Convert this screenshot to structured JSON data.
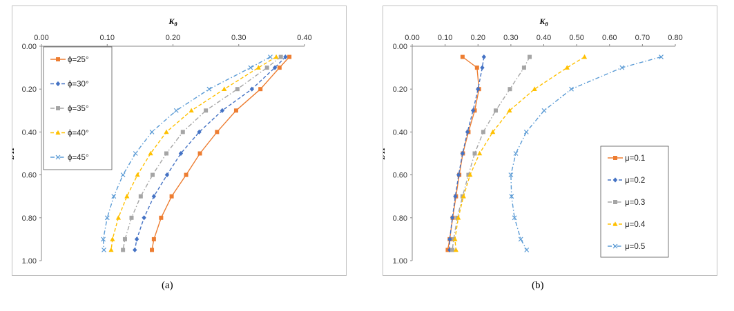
{
  "captions": {
    "a": "(a)",
    "b": "(b)"
  },
  "chart_data": [
    {
      "type": "line",
      "id": "a",
      "xlabel": "K",
      "xlabel_sub": "θ",
      "ylabel": "z/H",
      "xlim": [
        0,
        0.4
      ],
      "ylim": [
        0,
        1
      ],
      "x_ticks": [
        "0.00",
        "0.10",
        "0.20",
        "0.30",
        "0.40"
      ],
      "y_ticks": [
        "0.00",
        "0.20",
        "0.40",
        "0.60",
        "0.80",
        "1.00"
      ],
      "x_axis_position": "top",
      "y_axis_inverted": true,
      "legend_position": "top-left",
      "series": [
        {
          "name": "ϕ=25°",
          "color": "#ed7d31",
          "dash": "solid",
          "marker": "square",
          "x": [
            0.377,
            0.362,
            0.333,
            0.296,
            0.267,
            0.241,
            0.22,
            0.198,
            0.182,
            0.171,
            0.168
          ],
          "y": [
            0.05,
            0.1,
            0.2,
            0.3,
            0.4,
            0.5,
            0.6,
            0.7,
            0.8,
            0.9,
            0.95
          ]
        },
        {
          "name": "ϕ=30°",
          "color": "#4472c4",
          "dash": "dash",
          "marker": "diamond",
          "x": [
            0.371,
            0.355,
            0.32,
            0.275,
            0.24,
            0.212,
            0.191,
            0.171,
            0.156,
            0.145,
            0.142
          ],
          "y": [
            0.05,
            0.1,
            0.2,
            0.3,
            0.4,
            0.5,
            0.6,
            0.7,
            0.8,
            0.9,
            0.95
          ]
        },
        {
          "name": "ϕ=35°",
          "color": "#a5a5a5",
          "dash": "dashdot",
          "marker": "square",
          "x": [
            0.364,
            0.343,
            0.298,
            0.25,
            0.215,
            0.19,
            0.169,
            0.151,
            0.137,
            0.127,
            0.124
          ],
          "y": [
            0.05,
            0.1,
            0.2,
            0.3,
            0.4,
            0.5,
            0.6,
            0.7,
            0.8,
            0.9,
            0.95
          ]
        },
        {
          "name": "ϕ=40°",
          "color": "#ffc000",
          "dash": "dash",
          "marker": "triangle",
          "x": [
            0.357,
            0.33,
            0.278,
            0.228,
            0.19,
            0.166,
            0.146,
            0.13,
            0.117,
            0.108,
            0.106
          ],
          "y": [
            0.05,
            0.1,
            0.2,
            0.3,
            0.4,
            0.5,
            0.6,
            0.7,
            0.8,
            0.9,
            0.95
          ]
        },
        {
          "name": "ϕ=45°",
          "color": "#5b9bd5",
          "dash": "dashdot",
          "marker": "x",
          "x": [
            0.348,
            0.318,
            0.255,
            0.205,
            0.168,
            0.143,
            0.124,
            0.11,
            0.1,
            0.094,
            0.095
          ],
          "y": [
            0.05,
            0.1,
            0.2,
            0.3,
            0.4,
            0.5,
            0.6,
            0.7,
            0.8,
            0.9,
            0.95
          ]
        }
      ]
    },
    {
      "type": "line",
      "id": "b",
      "xlabel": "K",
      "xlabel_sub": "θ",
      "ylabel": "z/H",
      "xlim": [
        0,
        0.8
      ],
      "ylim": [
        0,
        1
      ],
      "x_ticks": [
        "0.00",
        "0.10",
        "0.20",
        "0.30",
        "0.40",
        "0.50",
        "0.60",
        "0.70",
        "0.80"
      ],
      "y_ticks": [
        "0.00",
        "0.20",
        "0.40",
        "0.60",
        "0.80",
        "1.00"
      ],
      "x_axis_position": "top",
      "y_axis_inverted": true,
      "legend_position": "bottom-right",
      "series": [
        {
          "name": "μ=0.1",
          "color": "#ed7d31",
          "dash": "solid",
          "marker": "square",
          "x": [
            0.153,
            0.197,
            0.203,
            0.19,
            0.171,
            0.154,
            0.143,
            0.133,
            0.123,
            0.114,
            0.108
          ],
          "y": [
            0.05,
            0.1,
            0.2,
            0.3,
            0.4,
            0.5,
            0.6,
            0.7,
            0.8,
            0.9,
            0.95
          ]
        },
        {
          "name": "μ=0.2",
          "color": "#4472c4",
          "dash": "dash",
          "marker": "diamond",
          "x": [
            0.218,
            0.213,
            0.2,
            0.185,
            0.168,
            0.153,
            0.141,
            0.131,
            0.122,
            0.114,
            0.114
          ],
          "y": [
            0.05,
            0.1,
            0.2,
            0.3,
            0.4,
            0.5,
            0.6,
            0.7,
            0.8,
            0.9,
            0.95
          ]
        },
        {
          "name": "μ=0.3",
          "color": "#a5a5a5",
          "dash": "dashdot",
          "marker": "square",
          "x": [
            0.357,
            0.34,
            0.297,
            0.254,
            0.216,
            0.19,
            0.171,
            0.153,
            0.137,
            0.126,
            0.122
          ],
          "y": [
            0.05,
            0.1,
            0.2,
            0.3,
            0.4,
            0.5,
            0.6,
            0.7,
            0.8,
            0.9,
            0.95
          ]
        },
        {
          "name": "μ=0.4",
          "color": "#ffc000",
          "dash": "dash",
          "marker": "triangle",
          "x": [
            0.524,
            0.471,
            0.372,
            0.296,
            0.245,
            0.205,
            0.176,
            0.156,
            0.14,
            0.13,
            0.133
          ],
          "y": [
            0.05,
            0.1,
            0.2,
            0.3,
            0.4,
            0.5,
            0.6,
            0.7,
            0.8,
            0.9,
            0.95
          ]
        },
        {
          "name": "μ=0.5",
          "color": "#5b9bd5",
          "dash": "dashdot",
          "marker": "x",
          "x": [
            0.757,
            0.638,
            0.484,
            0.401,
            0.347,
            0.315,
            0.3,
            0.302,
            0.311,
            0.33,
            0.348
          ],
          "y": [
            0.05,
            0.1,
            0.2,
            0.3,
            0.4,
            0.5,
            0.6,
            0.7,
            0.8,
            0.9,
            0.95
          ]
        }
      ]
    }
  ]
}
